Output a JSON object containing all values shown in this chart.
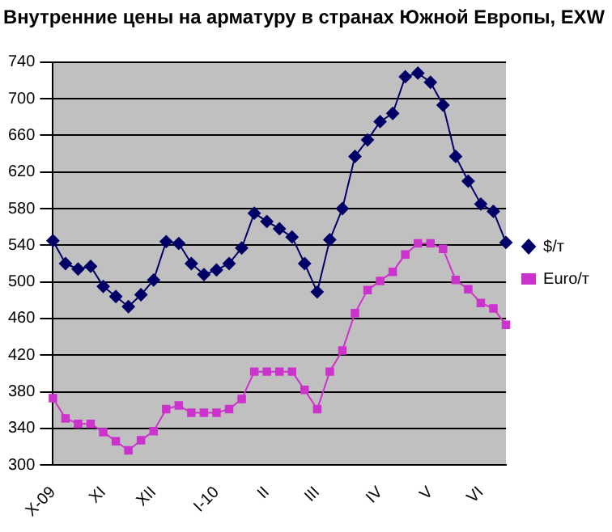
{
  "chart_data": {
    "type": "line",
    "title": "Внутренние цены на арматуру в странах Южной Европы, EXW",
    "categories": [
      "X-09",
      null,
      null,
      null,
      "XI",
      null,
      null,
      null,
      "XII",
      null,
      null,
      null,
      null,
      "I-10",
      null,
      null,
      null,
      "II",
      null,
      null,
      null,
      "III",
      null,
      null,
      null,
      null,
      "IV",
      null,
      null,
      null,
      "V",
      null,
      null,
      null,
      "VI",
      null,
      null
    ],
    "series": [
      {
        "name": "$/т",
        "color": "#000066",
        "marker": "diamond",
        "values": [
          545,
          520,
          514,
          517,
          495,
          484,
          473,
          486,
          502,
          544,
          542,
          520,
          508,
          513,
          520,
          537,
          575,
          566,
          558,
          549,
          520,
          489,
          546,
          580,
          637,
          655,
          675,
          684,
          724,
          728,
          718,
          693,
          637,
          610,
          585,
          577,
          543
        ]
      },
      {
        "name": "Euro/т",
        "color": "#cc33cc",
        "marker": "square",
        "values": [
          373,
          351,
          345,
          345,
          336,
          326,
          316,
          327,
          337,
          361,
          365,
          357,
          357,
          357,
          361,
          372,
          402,
          402,
          402,
          402,
          382,
          361,
          402,
          425,
          466,
          491,
          501,
          511,
          530,
          542,
          542,
          536,
          502,
          492,
          477,
          471,
          453
        ]
      }
    ],
    "ylim": [
      300,
      740
    ],
    "yticks": [
      300,
      340,
      380,
      420,
      460,
      500,
      540,
      580,
      620,
      660,
      700,
      740
    ],
    "grid": "y",
    "legend": "right"
  }
}
